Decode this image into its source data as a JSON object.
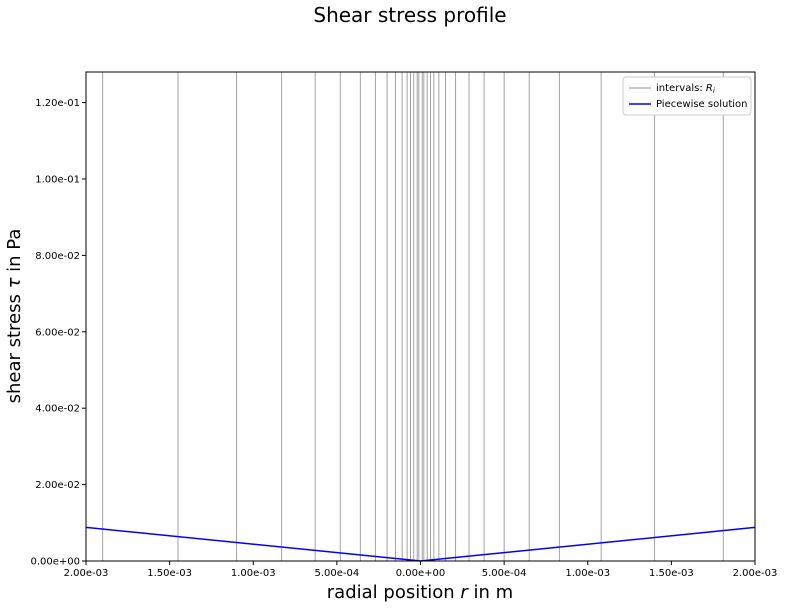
{
  "chart_data": {
    "type": "line",
    "title": "Shear stress profile",
    "xlabel": "radial position r in m",
    "ylabel": "shear stress τ in Pa",
    "xlim": [
      -0.002,
      0.002
    ],
    "ylim": [
      0,
      0.128
    ],
    "x_ticks": [
      -0.002,
      -0.0015,
      -0.001,
      -0.0005,
      0,
      0.0005,
      0.001,
      0.0015,
      0.002
    ],
    "x_tick_labels": [
      "2.00e-03",
      "1.50e-03",
      "1.00e-03",
      "5.00e-04",
      "0.00e+00",
      "5.00e-04",
      "1.00e-03",
      "1.50e-03",
      "2.00e-03"
    ],
    "y_ticks": [
      0,
      0.02,
      0.04,
      0.06,
      0.08,
      0.1,
      0.12
    ],
    "y_tick_labels": [
      "0.00e+00",
      "2.00e-02",
      "4.00e-02",
      "6.00e-02",
      "8.00e-02",
      "1.00e-01",
      "1.20e-01"
    ],
    "grid": false,
    "legend_position": "top-right",
    "series": [
      {
        "name": "intervals: R_i",
        "kind": "vlines",
        "color": "#8c8c8c",
        "x": [
          -0.0019,
          -0.00145,
          -0.0011,
          -0.00083,
          -0.00063,
          -0.00048,
          -0.00036,
          -0.00027,
          -0.0002,
          -0.00015,
          -0.00011,
          -8e-05,
          -6e-05,
          -4e-05,
          -2e-05,
          -1e-05,
          1e-05,
          2e-05,
          4e-05,
          6e-05,
          8e-05,
          0.00011,
          0.00015,
          0.00021,
          0.00029,
          0.00038,
          0.0005,
          0.00065,
          0.00083,
          0.00108,
          0.0014,
          0.00181
        ]
      },
      {
        "name": "Piecewise solution",
        "kind": "line",
        "color": "#0000ff",
        "x": [
          -0.002,
          0,
          0.002
        ],
        "y": [
          0.0088,
          0,
          0.0088
        ]
      }
    ]
  }
}
